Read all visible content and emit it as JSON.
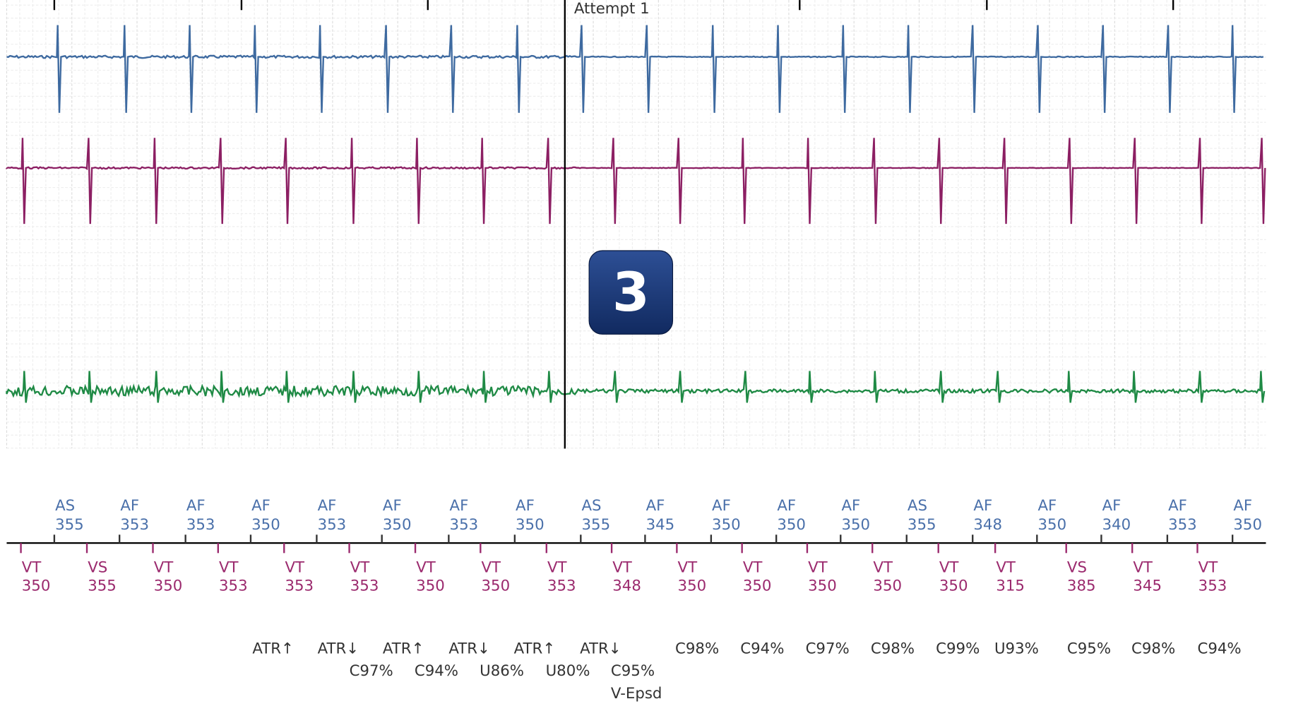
{
  "header": {
    "annotation": "Attempt 1",
    "badge": "3"
  },
  "atrial_markers": [
    {
      "label": "AS",
      "value": 355
    },
    {
      "label": "AF",
      "value": 353
    },
    {
      "label": "AF",
      "value": 353
    },
    {
      "label": "AF",
      "value": 350
    },
    {
      "label": "AF",
      "value": 353
    },
    {
      "label": "AF",
      "value": 350
    },
    {
      "label": "AF",
      "value": 353
    },
    {
      "label": "AF",
      "value": 350
    },
    {
      "label": "AS",
      "value": 355
    },
    {
      "label": "AF",
      "value": 345
    },
    {
      "label": "AF",
      "value": 350
    },
    {
      "label": "AF",
      "value": 350
    },
    {
      "label": "AF",
      "value": 350
    },
    {
      "label": "AS",
      "value": 355
    },
    {
      "label": "AF",
      "value": 348
    },
    {
      "label": "AF",
      "value": 350
    },
    {
      "label": "AF",
      "value": 340
    },
    {
      "label": "AF",
      "value": 353
    },
    {
      "label": "AF",
      "value": 350
    }
  ],
  "ventricular_markers": [
    {
      "label": "VT",
      "value": 350
    },
    {
      "label": "VS",
      "value": 355
    },
    {
      "label": "VT",
      "value": 350
    },
    {
      "label": "VT",
      "value": 353
    },
    {
      "label": "VT",
      "value": 353
    },
    {
      "label": "VT",
      "value": 353
    },
    {
      "label": "VT",
      "value": 350
    },
    {
      "label": "VT",
      "value": 350
    },
    {
      "label": "VT",
      "value": 353
    },
    {
      "label": "VT",
      "value": 348
    },
    {
      "label": "VT",
      "value": 350
    },
    {
      "label": "VT",
      "value": 350
    },
    {
      "label": "VT",
      "value": 350
    },
    {
      "label": "VT",
      "value": 350
    },
    {
      "label": "VT",
      "value": 350
    },
    {
      "label": "VT",
      "value": 315
    },
    {
      "label": "VS",
      "value": 385
    },
    {
      "label": "VT",
      "value": 345
    },
    {
      "label": "VT",
      "value": 353
    }
  ],
  "annotation_lines": [
    [
      "ATR↑",
      "ATR↓",
      "ATR↑",
      "ATR↓",
      "ATR↑",
      "ATR↓",
      "C98%",
      "C94%",
      "C97%",
      "C98%",
      "C99%",
      "U93%",
      "C95%",
      "C98%",
      "C94%"
    ],
    [
      "C97%",
      "C94%",
      "U86%",
      "U80%",
      "C95%"
    ],
    [
      "V-Epsd"
    ]
  ]
}
